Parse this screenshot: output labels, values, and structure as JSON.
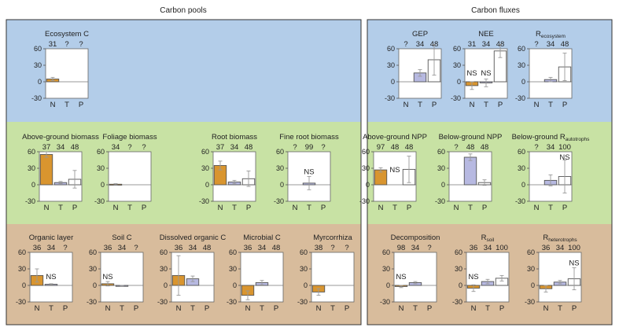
{
  "headings": {
    "left": "Carbon pools",
    "right": "Carbon fluxes"
  },
  "colors": {
    "top_band": "#b3cde9",
    "middle_band": "#c8e2a4",
    "bottom_band": "#d8bc9c",
    "N": "#d9952f",
    "T": "#b7b9e1",
    "P": "#ffffff",
    "outline": "#555555"
  },
  "chart_data": [
    {
      "type": "bar",
      "title": "Ecosystem C",
      "categories": [
        "N",
        "T",
        "P"
      ],
      "n_labels": [
        "31",
        "?",
        "?"
      ],
      "values": [
        5,
        null,
        null
      ],
      "errors": [
        3,
        null,
        null
      ],
      "ylim": [
        -30,
        60
      ],
      "yticks": [
        -30,
        0,
        30,
        60
      ],
      "annotations": []
    },
    {
      "type": "bar",
      "title": "GEP",
      "categories": [
        "N",
        "T",
        "P"
      ],
      "n_labels": [
        "?",
        "34",
        "48"
      ],
      "values": [
        null,
        16,
        40
      ],
      "errors": [
        null,
        6,
        28
      ],
      "ylim": [
        -30,
        60
      ],
      "yticks": [
        -30,
        0,
        30,
        60
      ],
      "annotations": []
    },
    {
      "type": "bar",
      "title": "NEE",
      "categories": [
        "N",
        "T",
        "P"
      ],
      "n_labels": [
        "31",
        "34",
        "48"
      ],
      "values": [
        -7,
        -2,
        56
      ],
      "errors": [
        7,
        7,
        12
      ],
      "ylim": [
        -30,
        60
      ],
      "yticks": [
        -30,
        0,
        30,
        60
      ],
      "annotations": [
        {
          "text": "NS",
          "category": "N"
        },
        {
          "text": "NS",
          "category": "T"
        }
      ]
    },
    {
      "type": "bar",
      "title": "R",
      "title_sub": "ecosystem",
      "categories": [
        "N",
        "T",
        "P"
      ],
      "n_labels": [
        "?",
        "34",
        "48"
      ],
      "values": [
        null,
        4,
        27
      ],
      "errors": [
        null,
        4,
        25
      ],
      "ylim": [
        -30,
        60
      ],
      "yticks": [
        -30,
        0,
        30,
        60
      ],
      "annotations": []
    },
    {
      "type": "bar",
      "title": "Above-ground biomass",
      "categories": [
        "N",
        "T",
        "P"
      ],
      "n_labels": [
        "37",
        "34",
        "48"
      ],
      "values": [
        55,
        4,
        10
      ],
      "errors": [
        5,
        2,
        16
      ],
      "ylim": [
        -30,
        60
      ],
      "yticks": [
        -30,
        0,
        30,
        60
      ],
      "annotations": []
    },
    {
      "type": "bar",
      "title": "Foliage biomass",
      "categories": [
        "N",
        "T",
        "P"
      ],
      "n_labels": [
        "34",
        "?",
        "?"
      ],
      "values": [
        1,
        null,
        null
      ],
      "errors": [
        1,
        null,
        null
      ],
      "ylim": [
        -30,
        60
      ],
      "yticks": [
        -30,
        0,
        30,
        60
      ],
      "annotations": []
    },
    {
      "type": "bar",
      "title": "Root biomass",
      "categories": [
        "N",
        "T",
        "P"
      ],
      "n_labels": [
        "37",
        "34",
        "48"
      ],
      "values": [
        35,
        5,
        11
      ],
      "errors": [
        8,
        3,
        14
      ],
      "ylim": [
        -30,
        60
      ],
      "yticks": [
        -30,
        0,
        30,
        60
      ],
      "annotations": []
    },
    {
      "type": "bar",
      "title": "Fine root biomass",
      "categories": [
        "N",
        "T",
        "P"
      ],
      "n_labels": [
        "?",
        "99",
        "?"
      ],
      "values": [
        null,
        3,
        null
      ],
      "errors": [
        null,
        12,
        null
      ],
      "ylim": [
        -30,
        60
      ],
      "yticks": [
        -30,
        0,
        30,
        60
      ],
      "annotations": [
        {
          "text": "NS",
          "category": "T"
        }
      ]
    },
    {
      "type": "bar",
      "title": "Above-ground NPP",
      "categories": [
        "N",
        "T",
        "P"
      ],
      "n_labels": [
        "97",
        "48",
        "48"
      ],
      "values": [
        27,
        null,
        28
      ],
      "errors": [
        4,
        null,
        24
      ],
      "ylim": [
        -30,
        60
      ],
      "yticks": [
        -30,
        0,
        30,
        60
      ],
      "annotations": [
        {
          "text": "NS",
          "category": "T"
        }
      ]
    },
    {
      "type": "bar",
      "title": "Below-ground NPP",
      "categories": [
        "N",
        "T",
        "P"
      ],
      "n_labels": [
        "?",
        "48",
        "48"
      ],
      "values": [
        null,
        50,
        4
      ],
      "errors": [
        null,
        6,
        5
      ],
      "ylim": [
        -30,
        60
      ],
      "yticks": [
        -30,
        0,
        30,
        60
      ],
      "annotations": []
    },
    {
      "type": "bar",
      "title": "Below-ground R",
      "title_sub": "autotrophs",
      "categories": [
        "N",
        "T",
        "P"
      ],
      "n_labels": [
        "?",
        "34",
        "100"
      ],
      "values": [
        null,
        8,
        15
      ],
      "errors": [
        null,
        10,
        30
      ],
      "ylim": [
        -30,
        60
      ],
      "yticks": [
        -30,
        0,
        30,
        60
      ],
      "annotations": [
        {
          "text": "NS",
          "category": "P"
        }
      ]
    },
    {
      "type": "bar",
      "title": "Organic layer",
      "categories": [
        "N",
        "T",
        "P"
      ],
      "n_labels": [
        "36",
        "34",
        "?"
      ],
      "values": [
        18,
        2,
        null
      ],
      "errors": [
        12,
        1,
        null
      ],
      "ylim": [
        -30,
        60
      ],
      "yticks": [
        -30,
        0,
        30,
        60
      ],
      "annotations": [
        {
          "text": "NS",
          "category": "T"
        }
      ]
    },
    {
      "type": "bar",
      "title": "Soil C",
      "categories": [
        "N",
        "T",
        "P"
      ],
      "n_labels": [
        "36",
        "34",
        "?"
      ],
      "values": [
        3,
        -1,
        null
      ],
      "errors": [
        4,
        1,
        null
      ],
      "ylim": [
        -30,
        60
      ],
      "yticks": [
        -30,
        0,
        30,
        60
      ],
      "annotations": [
        {
          "text": "NS",
          "category": "N"
        }
      ]
    },
    {
      "type": "bar",
      "title": "Dissolved organic C",
      "categories": [
        "N",
        "T",
        "P"
      ],
      "n_labels": [
        "36",
        "34",
        "48"
      ],
      "values": [
        18,
        12,
        null
      ],
      "errors": [
        36,
        5,
        null
      ],
      "ylim": [
        -30,
        60
      ],
      "yticks": [
        -30,
        0,
        30,
        60
      ],
      "annotations": []
    },
    {
      "type": "bar",
      "title": "Microbial C",
      "categories": [
        "N",
        "T",
        "P"
      ],
      "n_labels": [
        "36",
        "34",
        "48"
      ],
      "values": [
        -18,
        5,
        null
      ],
      "errors": [
        8,
        4,
        null
      ],
      "ylim": [
        -30,
        60
      ],
      "yticks": [
        -30,
        0,
        30,
        60
      ],
      "annotations": []
    },
    {
      "type": "bar",
      "title": "Myrcorrhiza",
      "categories": [
        "N",
        "T",
        "P"
      ],
      "n_labels": [
        "38",
        "?",
        "?"
      ],
      "values": [
        -12,
        null,
        null
      ],
      "errors": [
        6,
        null,
        null
      ],
      "ylim": [
        -30,
        60
      ],
      "yticks": [
        -30,
        0,
        30,
        60
      ],
      "annotations": []
    },
    {
      "type": "bar",
      "title": "Decomposition",
      "categories": [
        "N",
        "T",
        "P"
      ],
      "n_labels": [
        "98",
        "34",
        "?"
      ],
      "values": [
        -2,
        5,
        null
      ],
      "errors": [
        2,
        2,
        null
      ],
      "ylim": [
        -30,
        60
      ],
      "yticks": [
        -30,
        0,
        30,
        60
      ],
      "annotations": [
        {
          "text": "NS",
          "category": "N"
        }
      ]
    },
    {
      "type": "bar",
      "title": "R",
      "title_sub": "soil",
      "categories": [
        "N",
        "T",
        "P"
      ],
      "n_labels": [
        "36",
        "34",
        "100"
      ],
      "values": [
        -5,
        7,
        13
      ],
      "errors": [
        6,
        4,
        5
      ],
      "ylim": [
        -30,
        60
      ],
      "yticks": [
        -30,
        0,
        30,
        60
      ],
      "annotations": [
        {
          "text": "NS",
          "category": "N"
        }
      ]
    },
    {
      "type": "bar",
      "title": "R",
      "title_sub": "heterotrophs",
      "categories": [
        "N",
        "T",
        "P"
      ],
      "n_labels": [
        "36",
        "34",
        "100"
      ],
      "values": [
        -6,
        6,
        12
      ],
      "errors": [
        6,
        3,
        20
      ],
      "ylim": [
        -30,
        60
      ],
      "yticks": [
        -30,
        0,
        30,
        60
      ],
      "annotations": [
        {
          "text": "NS",
          "category": "P"
        }
      ]
    }
  ]
}
